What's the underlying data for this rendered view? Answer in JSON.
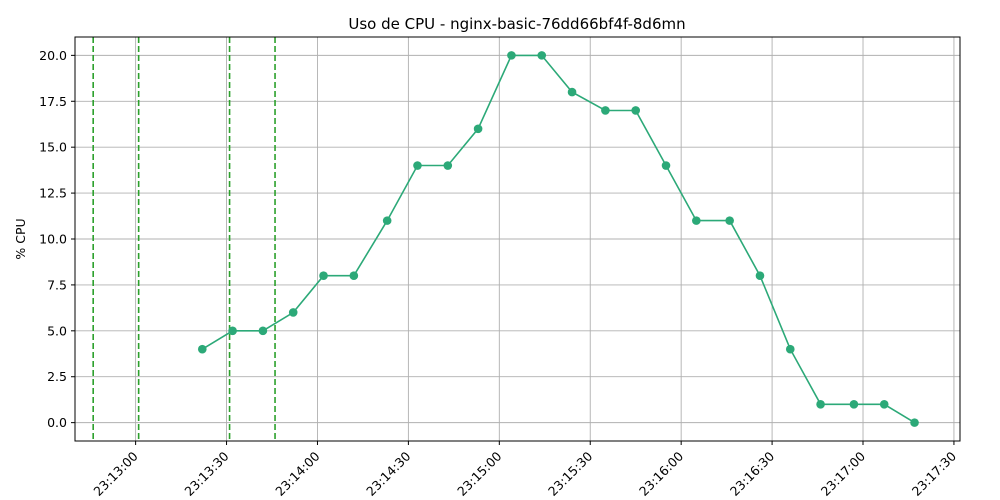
{
  "chart_data": {
    "type": "line",
    "title": "Uso de CPU - nginx-basic-76dd66bf4f-8d6mn",
    "xlabel": "",
    "ylabel": "% CPU",
    "xlim": [
      "23:12:40",
      "23:17:32"
    ],
    "ylim": [
      -1.0,
      21.0
    ],
    "grid": true,
    "x_ticks": [
      "23:13:00",
      "23:13:30",
      "23:14:00",
      "23:14:30",
      "23:15:00",
      "23:15:30",
      "23:16:00",
      "23:16:30",
      "23:17:00",
      "23:17:30"
    ],
    "y_ticks": [
      "0.0",
      "2.5",
      "5.0",
      "7.5",
      "10.0",
      "12.5",
      "15.0",
      "17.5",
      "20.0"
    ],
    "series": [
      {
        "color": "#2ca978",
        "x": [
          "23:13:22",
          "23:13:32",
          "23:13:42",
          "23:13:52",
          "23:14:02",
          "23:14:12",
          "23:14:23",
          "23:14:33",
          "23:14:43",
          "23:14:53",
          "23:15:04",
          "23:15:14",
          "23:15:24",
          "23:15:35",
          "23:15:45",
          "23:15:55",
          "23:16:05",
          "23:16:16",
          "23:16:26",
          "23:16:36",
          "23:16:46",
          "23:16:57",
          "23:17:07",
          "23:17:17"
        ],
        "y": [
          4,
          5,
          5,
          6,
          8,
          8,
          11,
          14,
          14,
          16,
          20,
          20,
          18,
          17,
          17,
          14,
          11,
          11,
          8,
          4,
          1,
          1,
          1,
          0
        ]
      }
    ],
    "vlines": {
      "color": "#2ca02c",
      "style": "dashed",
      "x": [
        "23:12:46",
        "23:13:01",
        "23:13:31",
        "23:13:46"
      ]
    }
  }
}
